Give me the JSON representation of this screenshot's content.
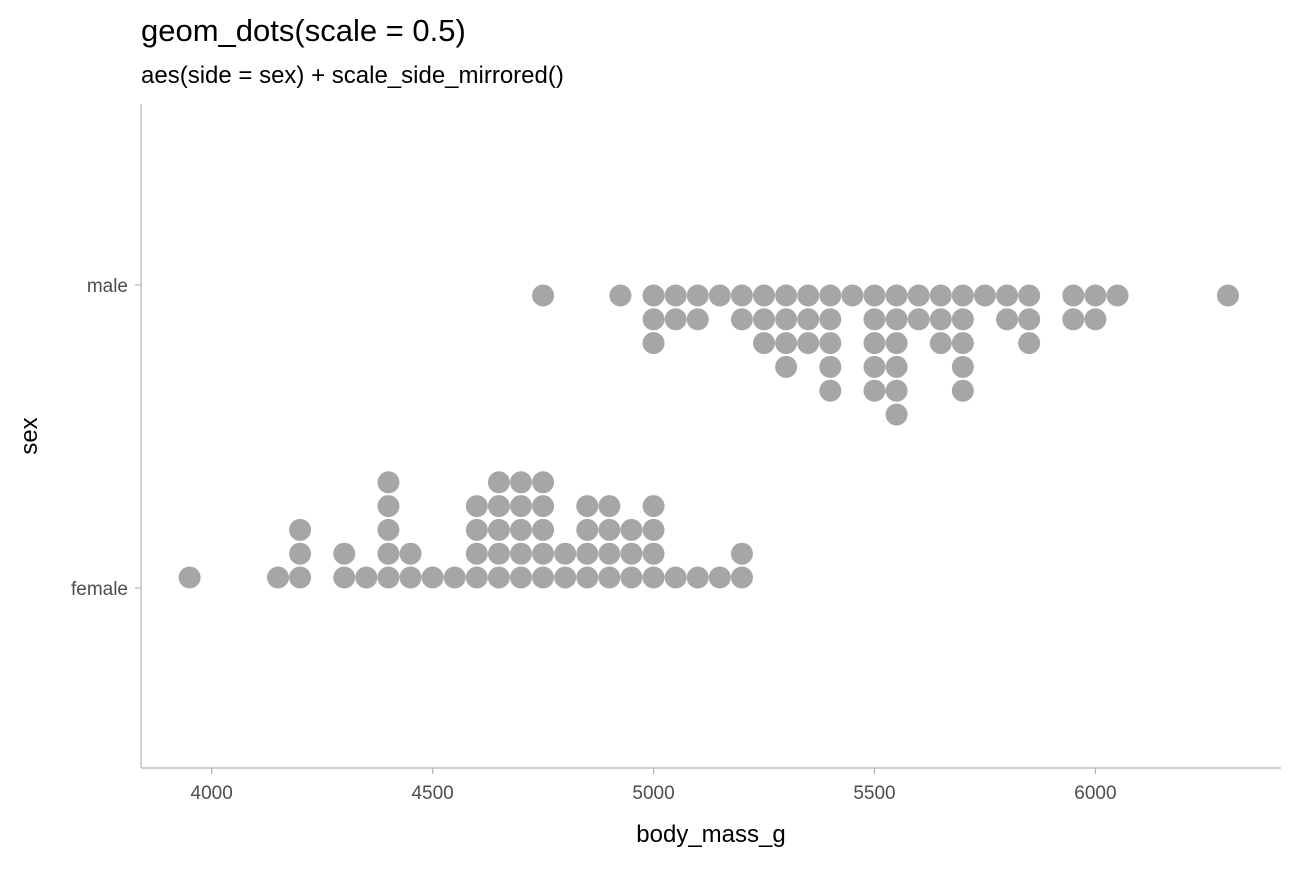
{
  "chart_data": {
    "type": "dots",
    "title": "geom_dots(scale = 0.5)",
    "subtitle": "aes(side = sex) + scale_side_mirrored()",
    "xlabel": "body_mass_g",
    "ylabel": "sex",
    "xlim": [
      3840,
      6420
    ],
    "x_ticks": [
      4000,
      4500,
      5000,
      5500,
      6000
    ],
    "categories": [
      "male",
      "female"
    ],
    "grid": false,
    "dot_color": "#A6A6A6",
    "axis_color": "#B3B3B3",
    "series": [
      {
        "category": "male",
        "side": "bottom",
        "bins": [
          {
            "x": 4750,
            "count": 1
          },
          {
            "x": 4925,
            "count": 1
          },
          {
            "x": 5000,
            "count": 3
          },
          {
            "x": 5050,
            "count": 2
          },
          {
            "x": 5100,
            "count": 2
          },
          {
            "x": 5150,
            "count": 1
          },
          {
            "x": 5200,
            "count": 2
          },
          {
            "x": 5250,
            "count": 3
          },
          {
            "x": 5300,
            "count": 4
          },
          {
            "x": 5350,
            "count": 3
          },
          {
            "x": 5400,
            "count": 5
          },
          {
            "x": 5450,
            "count": 1
          },
          {
            "x": 5500,
            "count": 5
          },
          {
            "x": 5550,
            "count": 6
          },
          {
            "x": 5600,
            "count": 2
          },
          {
            "x": 5650,
            "count": 3
          },
          {
            "x": 5700,
            "count": 5
          },
          {
            "x": 5750,
            "count": 1
          },
          {
            "x": 5800,
            "count": 2
          },
          {
            "x": 5850,
            "count": 3
          },
          {
            "x": 5950,
            "count": 2
          },
          {
            "x": 6000,
            "count": 2
          },
          {
            "x": 6050,
            "count": 1
          },
          {
            "x": 6300,
            "count": 1
          }
        ]
      },
      {
        "category": "female",
        "side": "top",
        "bins": [
          {
            "x": 3950,
            "count": 1
          },
          {
            "x": 4150,
            "count": 1
          },
          {
            "x": 4200,
            "count": 3
          },
          {
            "x": 4300,
            "count": 2
          },
          {
            "x": 4350,
            "count": 1
          },
          {
            "x": 4400,
            "count": 5
          },
          {
            "x": 4450,
            "count": 2
          },
          {
            "x": 4500,
            "count": 1
          },
          {
            "x": 4550,
            "count": 1
          },
          {
            "x": 4600,
            "count": 4
          },
          {
            "x": 4650,
            "count": 5
          },
          {
            "x": 4700,
            "count": 5
          },
          {
            "x": 4750,
            "count": 5
          },
          {
            "x": 4800,
            "count": 2
          },
          {
            "x": 4850,
            "count": 4
          },
          {
            "x": 4900,
            "count": 4
          },
          {
            "x": 4950,
            "count": 3
          },
          {
            "x": 5000,
            "count": 4
          },
          {
            "x": 5050,
            "count": 1
          },
          {
            "x": 5100,
            "count": 1
          },
          {
            "x": 5150,
            "count": 1
          },
          {
            "x": 5200,
            "count": 2
          }
        ]
      }
    ]
  }
}
